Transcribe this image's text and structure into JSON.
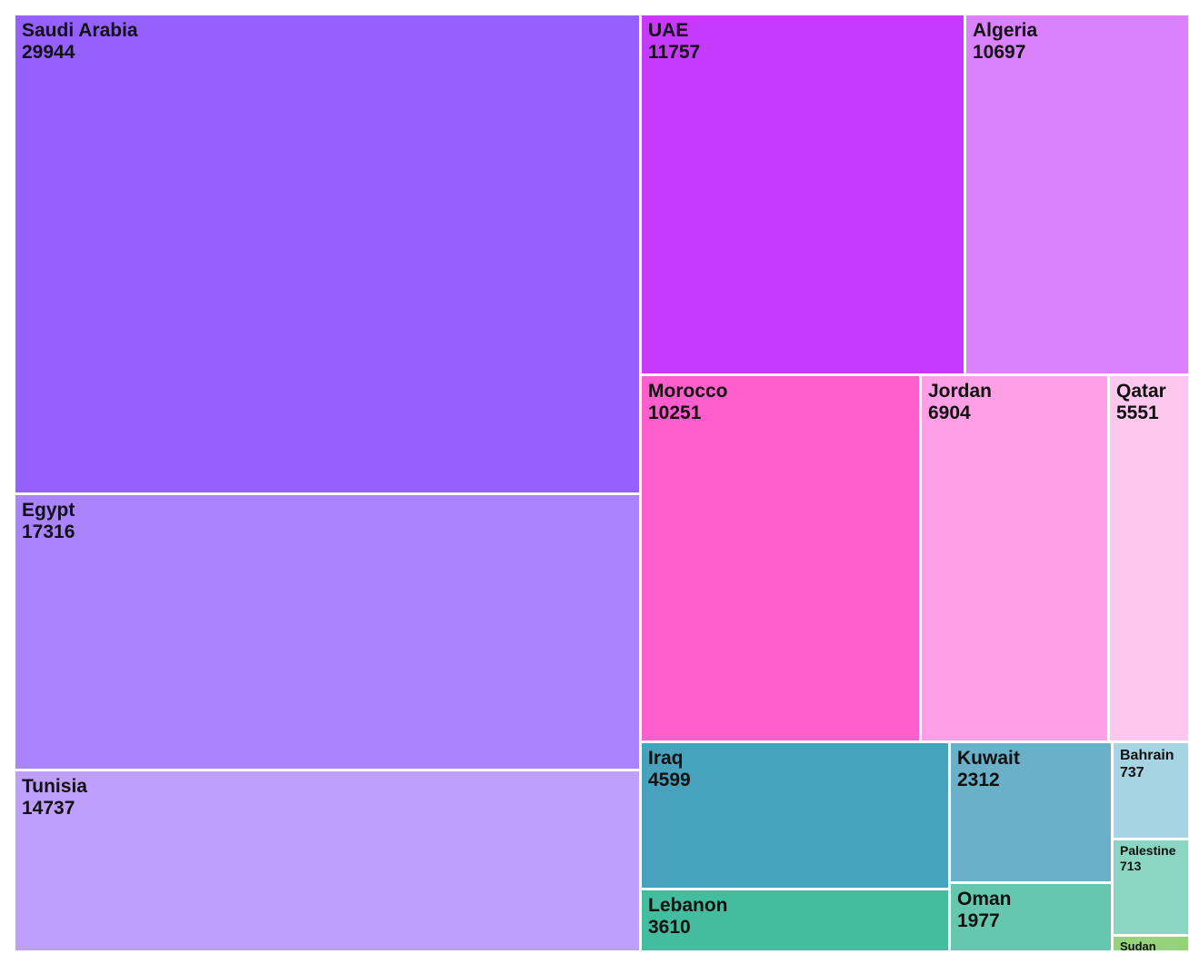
{
  "chart_data": {
    "type": "treemap",
    "title": "",
    "items": [
      {
        "label": "Saudi Arabia",
        "value": 29944,
        "value_text": "29944",
        "color": "#9461fe"
      },
      {
        "label": "Egypt",
        "value": 17316,
        "value_text": "17316",
        "color": "#a984fe"
      },
      {
        "label": "Tunisia",
        "value": 14737,
        "value_text": "14737",
        "color": "#bf9ffe"
      },
      {
        "label": "UAE",
        "value": 11757,
        "value_text": "11757",
        "color": "#c63aff"
      },
      {
        "label": "Algeria",
        "value": 10697,
        "value_text": "10697",
        "color": "#da82fe"
      },
      {
        "label": "Morocco",
        "value": 10251,
        "value_text": "10251",
        "color": "#ff5ecc"
      },
      {
        "label": "Jordan",
        "value": 6904,
        "value_text": "6904",
        "color": "#ffa0e6"
      },
      {
        "label": "Qatar",
        "value": 5551,
        "value_text": "5551",
        "color": "#fec8ee"
      },
      {
        "label": "Iraq",
        "value": 4599,
        "value_text": "4599",
        "color": "#46a2bd"
      },
      {
        "label": "Lebanon",
        "value": 3610,
        "value_text": "3610",
        "color": "#44bd9f"
      },
      {
        "label": "Kuwait",
        "value": 2312,
        "value_text": "2312",
        "color": "#69b0c8"
      },
      {
        "label": "Oman",
        "value": 1977,
        "value_text": "1977",
        "color": "#66c7af"
      },
      {
        "label": "Bahrain",
        "value": 737,
        "value_text": "737",
        "color": "#a6d4e3"
      },
      {
        "label": "Palestine",
        "value": 713,
        "value_text": "713",
        "color": "#8ad6c3"
      },
      {
        "label": "Sudan",
        "value": null,
        "value_text": "",
        "color": "#96d27a"
      }
    ]
  }
}
